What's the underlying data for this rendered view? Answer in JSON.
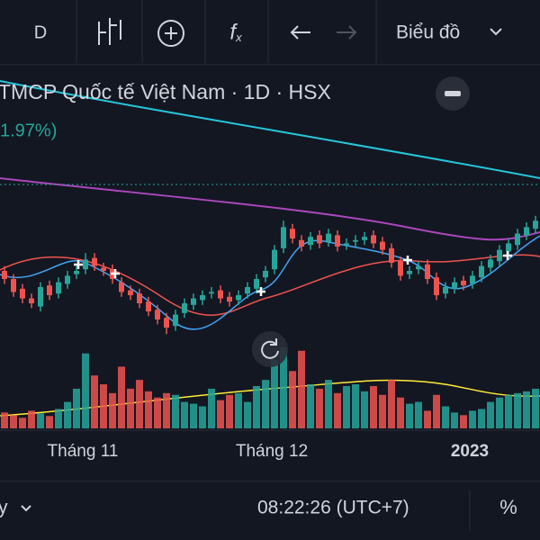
{
  "toolbar": {
    "interval": "D",
    "chart_type": "Biểu đồ"
  },
  "header": {
    "title": "TMCP Quốc tế Việt Nam · 1D · HSX",
    "change": "1.97%)"
  },
  "chart_data": {
    "type": "candlestick",
    "open": [
      55,
      50,
      44,
      38,
      33,
      46,
      41,
      47,
      53,
      56,
      63,
      57,
      56,
      48,
      43,
      41,
      36,
      31,
      26,
      21,
      29,
      34,
      37,
      41,
      43,
      39,
      37,
      41,
      44,
      51,
      56,
      69,
      81,
      74,
      71,
      77,
      73,
      77,
      71,
      73,
      74,
      77,
      73,
      69,
      61,
      53,
      56,
      59,
      51,
      41,
      44,
      49,
      47,
      51,
      57,
      61,
      67,
      71,
      77,
      81
    ],
    "high": [
      58,
      53,
      47,
      41,
      48,
      49,
      51,
      55,
      58,
      66,
      66,
      60,
      59,
      51,
      46,
      44,
      39,
      34,
      29,
      31,
      38,
      41,
      43,
      45,
      46,
      42,
      43,
      48,
      53,
      58,
      71,
      86,
      84,
      77,
      79,
      80,
      81,
      80,
      75,
      77,
      79,
      80,
      76,
      72,
      64,
      58,
      61,
      62,
      54,
      48,
      51,
      52,
      55,
      61,
      65,
      71,
      75,
      81,
      85,
      89
    ],
    "low": [
      47,
      39,
      35,
      32,
      30,
      37,
      38,
      44,
      50,
      53,
      55,
      52,
      47,
      39,
      37,
      32,
      27,
      22,
      16,
      18,
      26,
      31,
      34,
      38,
      35,
      33,
      34,
      38,
      41,
      48,
      53,
      66,
      72,
      67,
      68,
      69,
      70,
      67,
      68,
      70,
      71,
      69,
      65,
      57,
      49,
      50,
      53,
      47,
      37,
      38,
      41,
      43,
      44,
      48,
      54,
      58,
      64,
      68,
      74,
      78
    ],
    "close": [
      50,
      42,
      38,
      35,
      45,
      40,
      48,
      52,
      55,
      62,
      58,
      55,
      50,
      42,
      40,
      35,
      30,
      25,
      20,
      28,
      35,
      38,
      40,
      42,
      38,
      36,
      40,
      45,
      50,
      55,
      68,
      82,
      75,
      70,
      76,
      72,
      78,
      70,
      72,
      74,
      76,
      72,
      68,
      60,
      52,
      55,
      58,
      50,
      40,
      45,
      48,
      46,
      52,
      58,
      62,
      68,
      72,
      78,
      82,
      86
    ],
    "volume": [
      18,
      15,
      12,
      20,
      17,
      14,
      22,
      30,
      45,
      85,
      60,
      50,
      40,
      70,
      45,
      55,
      42,
      35,
      40,
      38,
      30,
      28,
      25,
      45,
      32,
      38,
      40,
      30,
      48,
      55,
      78,
      92,
      65,
      88,
      50,
      45,
      55,
      40,
      48,
      50,
      42,
      48,
      38,
      55,
      35,
      28,
      30,
      20,
      38,
      25,
      18,
      15,
      20,
      22,
      30,
      35,
      38,
      40,
      42,
      45
    ],
    "ylim": [
      0,
      100
    ],
    "volume_ylim": [
      0,
      100
    ],
    "up_color": "#26a69a",
    "down_color": "#ef5350"
  },
  "x_labels": [
    "Tháng 11",
    "Tháng 12",
    "2023"
  ],
  "footer": {
    "range": "y",
    "time": "08:22:26 (UTC+7)",
    "percent": "%"
  }
}
